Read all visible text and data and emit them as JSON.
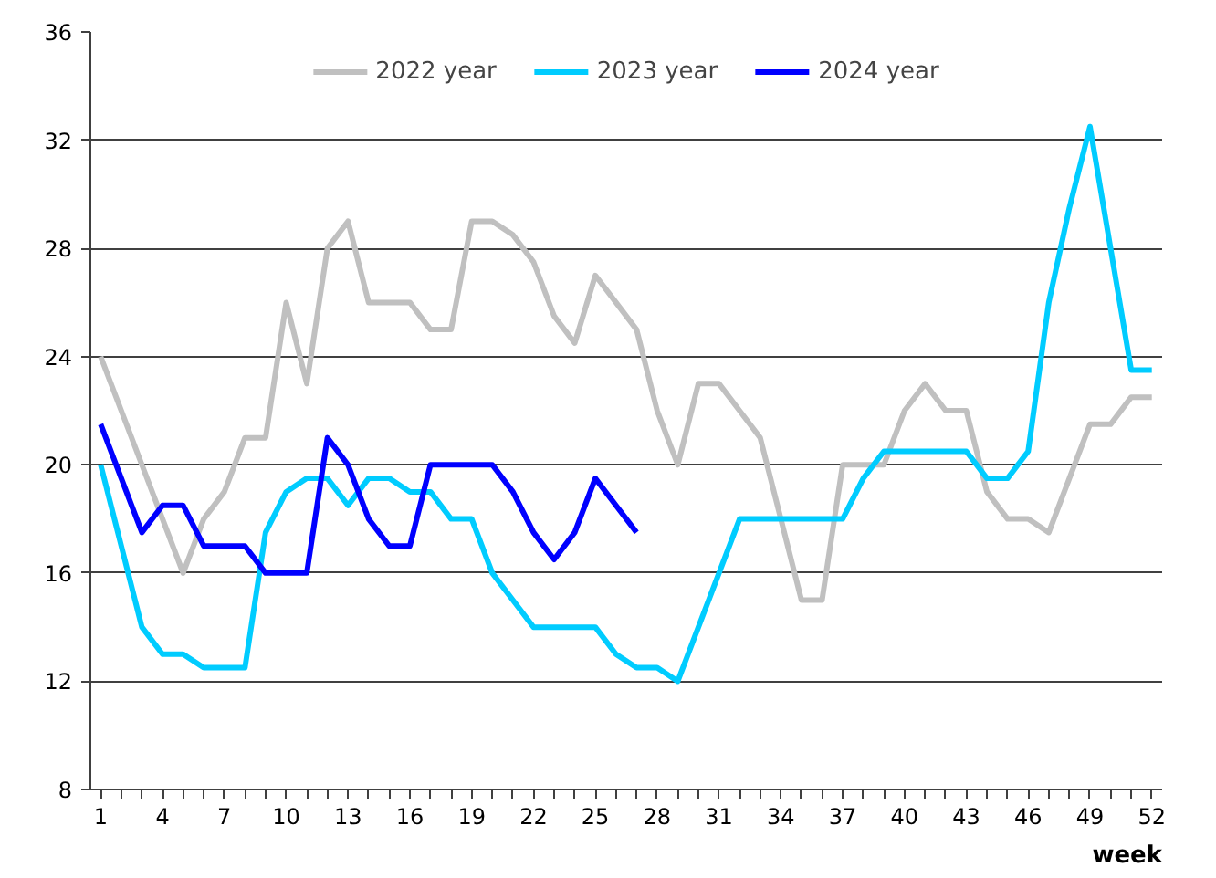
{
  "chart_data": {
    "type": "line",
    "xlabel": "week",
    "x": [
      1,
      2,
      3,
      4,
      5,
      6,
      7,
      8,
      9,
      10,
      11,
      12,
      13,
      14,
      15,
      16,
      17,
      18,
      19,
      20,
      21,
      22,
      23,
      24,
      25,
      26,
      27,
      28,
      29,
      30,
      31,
      32,
      33,
      34,
      35,
      36,
      37,
      38,
      39,
      40,
      41,
      42,
      43,
      44,
      45,
      46,
      47,
      48,
      49,
      50,
      51,
      52
    ],
    "xlim": [
      0.5,
      52.5
    ],
    "xticks": [
      1,
      {
        "value": 2,
        "label": null
      },
      {
        "value": 3,
        "label": null
      },
      4,
      {
        "value": 5,
        "label": null
      },
      {
        "value": 6,
        "label": null
      },
      7,
      {
        "value": 8,
        "label": null
      },
      {
        "value": 9,
        "label": null
      },
      10,
      {
        "value": 11,
        "label": null
      },
      {
        "value": 12,
        "label": null
      },
      13,
      {
        "value": 14,
        "label": null
      },
      {
        "value": 15,
        "label": null
      },
      16,
      {
        "value": 17,
        "label": null
      },
      {
        "value": 18,
        "label": null
      },
      19,
      {
        "value": 20,
        "label": null
      },
      {
        "value": 21,
        "label": null
      },
      22,
      {
        "value": 23,
        "label": null
      },
      {
        "value": 24,
        "label": null
      },
      25,
      {
        "value": 26,
        "label": null
      },
      {
        "value": 27,
        "label": null
      },
      28,
      {
        "value": 29,
        "label": null
      },
      {
        "value": 30,
        "label": null
      },
      31,
      {
        "value": 32,
        "label": null
      },
      {
        "value": 33,
        "label": null
      },
      34,
      {
        "value": 35,
        "label": null
      },
      {
        "value": 36,
        "label": null
      },
      37,
      {
        "value": 38,
        "label": null
      },
      {
        "value": 39,
        "label": null
      },
      40,
      {
        "value": 41,
        "label": null
      },
      {
        "value": 42,
        "label": null
      },
      43,
      {
        "value": 44,
        "label": null
      },
      {
        "value": 45,
        "label": null
      },
      46,
      {
        "value": 47,
        "label": null
      },
      {
        "value": 48,
        "label": null
      },
      49,
      {
        "value": 50,
        "label": null
      },
      {
        "value": 51,
        "label": null
      },
      52
    ],
    "ylim": [
      8,
      36
    ],
    "yticks": [
      8,
      12,
      16,
      20,
      24,
      28,
      32,
      36
    ],
    "grid": "y",
    "legend": "top",
    "line_style": "solid",
    "marker": "none",
    "series": [
      {
        "name": "2022 year",
        "color": "#c0c0c0",
        "values": [
          24,
          22,
          20,
          18,
          16,
          18,
          19,
          21,
          21,
          26,
          23,
          28,
          29,
          26,
          26,
          26,
          25,
          25,
          29,
          29,
          28.5,
          27.5,
          25.5,
          24.5,
          27,
          26,
          25,
          22,
          20,
          23,
          23,
          22,
          21,
          18,
          15,
          15,
          20,
          20,
          20,
          22,
          23,
          22,
          22,
          19,
          18,
          18,
          17.5,
          19.5,
          21.5,
          21.5,
          22.5,
          22.5
        ]
      },
      {
        "name": "2023 year",
        "color": "#00ccff",
        "values": [
          20,
          17,
          14,
          13,
          13,
          12.5,
          12.5,
          12.5,
          17.5,
          19,
          19.5,
          19.5,
          18.5,
          19.5,
          19.5,
          19,
          19,
          18,
          18,
          16,
          15,
          14,
          14,
          14,
          14,
          13,
          12.5,
          12.5,
          12,
          14,
          16,
          18,
          18,
          18,
          18,
          18,
          18,
          19.5,
          20.5,
          20.5,
          20.5,
          20.5,
          20.5,
          19.5,
          19.5,
          20.5,
          26,
          29.5,
          32.5,
          28,
          23.5,
          23.5
        ]
      },
      {
        "name": "2024 year",
        "color": "#0000ff",
        "values": [
          21.5,
          19.5,
          17.5,
          18.5,
          18.5,
          17,
          17,
          17,
          16,
          16,
          16,
          21,
          20,
          18,
          17,
          17,
          20,
          20,
          20,
          20,
          19,
          17.5,
          16.5,
          17.5,
          19.5,
          18.5,
          17.5,
          null,
          null,
          null,
          null,
          null,
          null,
          null,
          null,
          null,
          null,
          null,
          null,
          null,
          null,
          null,
          null,
          null,
          null,
          null,
          null,
          null,
          null,
          null,
          null,
          null
        ]
      }
    ]
  }
}
